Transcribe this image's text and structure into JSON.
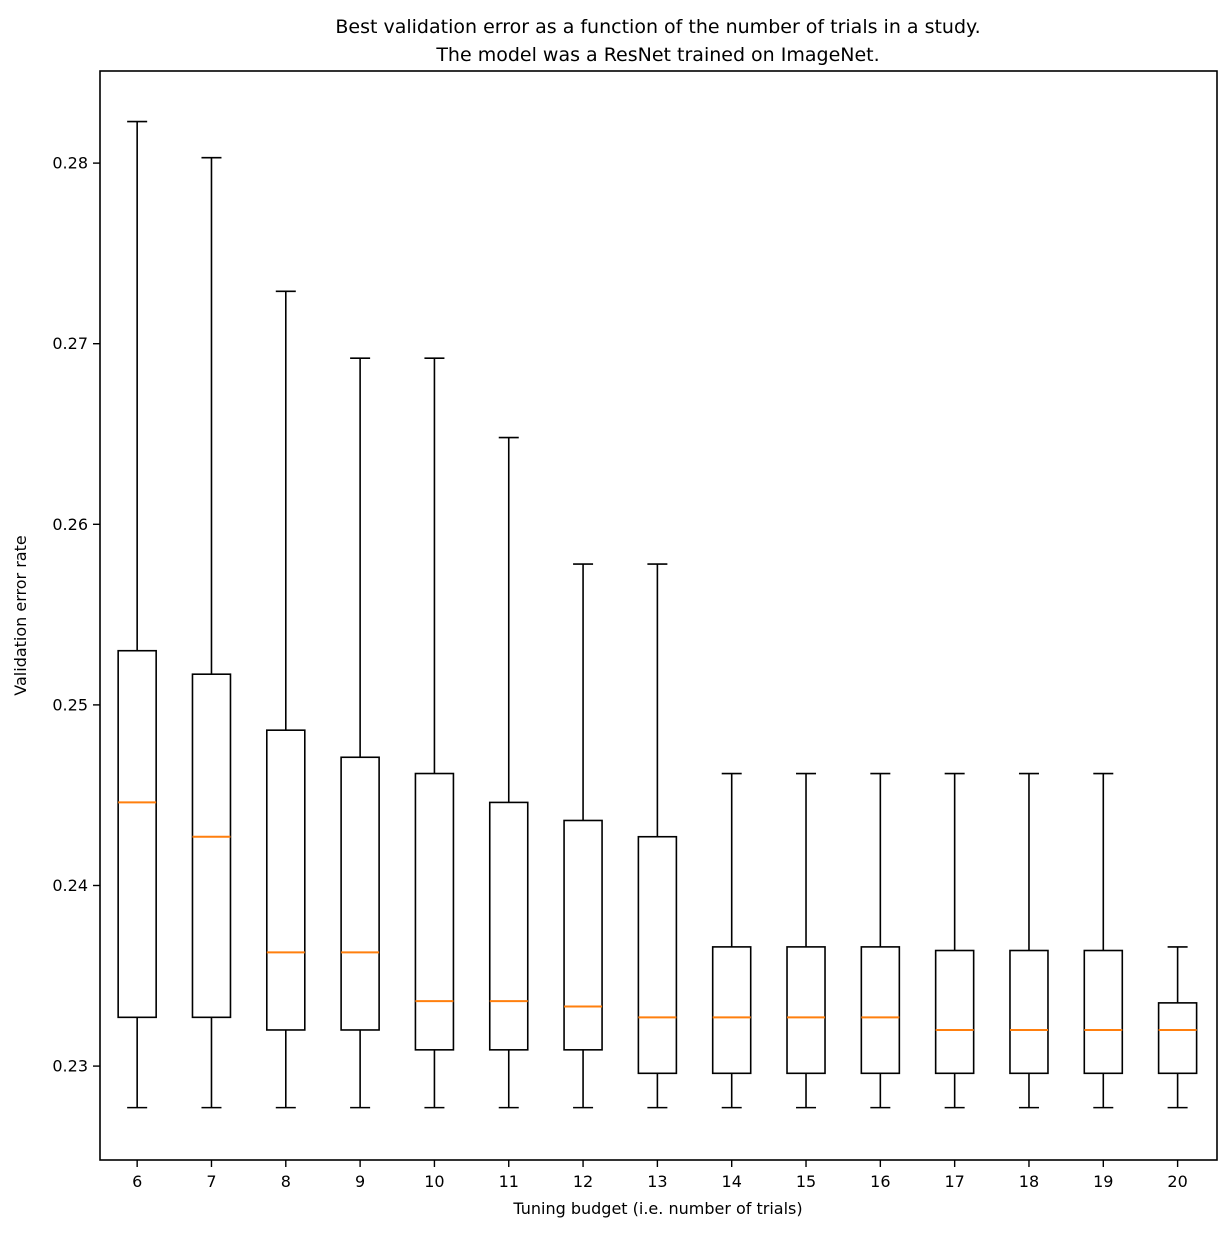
{
  "chart_data": {
    "type": "boxplot",
    "title_line1": "Best validation error as a function of the number of trials in a study.",
    "title_line2": "The model was a ResNet trained on ImageNet.",
    "xlabel": "Tuning budget (i.e. number of trials)",
    "ylabel": "Validation error rate",
    "x_tick_labels": [
      "6",
      "7",
      "8",
      "9",
      "10",
      "11",
      "12",
      "13",
      "14",
      "15",
      "16",
      "17",
      "18",
      "19",
      "20"
    ],
    "y_ticks": [
      {
        "value": 0.23,
        "label": "0.23"
      },
      {
        "value": 0.24,
        "label": "0.24"
      },
      {
        "value": 0.25,
        "label": "0.25"
      },
      {
        "value": 0.26,
        "label": "0.26"
      },
      {
        "value": 0.27,
        "label": "0.27"
      },
      {
        "value": 0.28,
        "label": "0.28"
      }
    ],
    "xlim": [
      5.5,
      20.53
    ],
    "ylim": [
      0.2248,
      0.2851
    ],
    "grid": false,
    "legend": null,
    "colors": {
      "box_edge": "#000000",
      "median": "#ff7f0e",
      "background": "#ffffff",
      "text": "#000000"
    },
    "series": [
      {
        "trial": 6,
        "whisker_low": 0.2277,
        "q1": 0.2327,
        "median": 0.2446,
        "q3": 0.253,
        "whisker_high": 0.2823
      },
      {
        "trial": 7,
        "whisker_low": 0.2277,
        "q1": 0.2327,
        "median": 0.2427,
        "q3": 0.2517,
        "whisker_high": 0.2803
      },
      {
        "trial": 8,
        "whisker_low": 0.2277,
        "q1": 0.232,
        "median": 0.2363,
        "q3": 0.2486,
        "whisker_high": 0.2729
      },
      {
        "trial": 9,
        "whisker_low": 0.2277,
        "q1": 0.232,
        "median": 0.2363,
        "q3": 0.2471,
        "whisker_high": 0.2692
      },
      {
        "trial": 10,
        "whisker_low": 0.2277,
        "q1": 0.2309,
        "median": 0.2336,
        "q3": 0.2462,
        "whisker_high": 0.2692
      },
      {
        "trial": 11,
        "whisker_low": 0.2277,
        "q1": 0.2309,
        "median": 0.2336,
        "q3": 0.2446,
        "whisker_high": 0.2648
      },
      {
        "trial": 12,
        "whisker_low": 0.2277,
        "q1": 0.2309,
        "median": 0.2333,
        "q3": 0.2436,
        "whisker_high": 0.2578
      },
      {
        "trial": 13,
        "whisker_low": 0.2277,
        "q1": 0.2296,
        "median": 0.2327,
        "q3": 0.2427,
        "whisker_high": 0.2578
      },
      {
        "trial": 14,
        "whisker_low": 0.2277,
        "q1": 0.2296,
        "median": 0.2327,
        "q3": 0.2366,
        "whisker_high": 0.2462
      },
      {
        "trial": 15,
        "whisker_low": 0.2277,
        "q1": 0.2296,
        "median": 0.2327,
        "q3": 0.2366,
        "whisker_high": 0.2462
      },
      {
        "trial": 16,
        "whisker_low": 0.2277,
        "q1": 0.2296,
        "median": 0.2327,
        "q3": 0.2366,
        "whisker_high": 0.2462
      },
      {
        "trial": 17,
        "whisker_low": 0.2277,
        "q1": 0.2296,
        "median": 0.232,
        "q3": 0.2364,
        "whisker_high": 0.2462
      },
      {
        "trial": 18,
        "whisker_low": 0.2277,
        "q1": 0.2296,
        "median": 0.232,
        "q3": 0.2364,
        "whisker_high": 0.2462
      },
      {
        "trial": 19,
        "whisker_low": 0.2277,
        "q1": 0.2296,
        "median": 0.232,
        "q3": 0.2364,
        "whisker_high": 0.2462
      },
      {
        "trial": 20,
        "whisker_low": 0.2277,
        "q1": 0.2296,
        "median": 0.232,
        "q3": 0.2335,
        "whisker_high": 0.2366
      }
    ]
  }
}
